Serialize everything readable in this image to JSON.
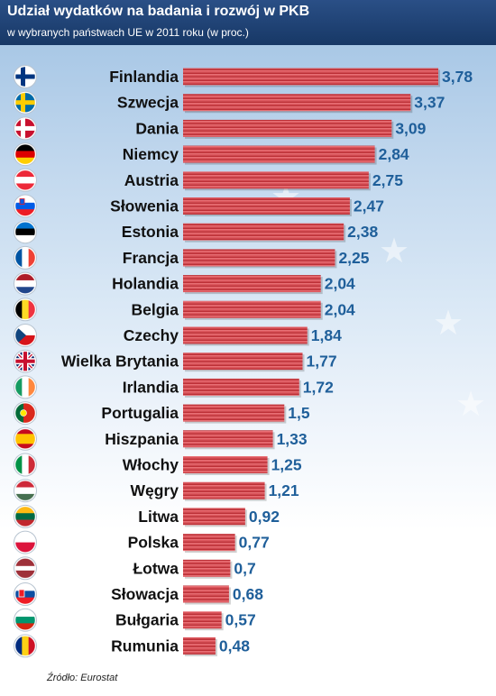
{
  "header": {
    "title": "Udział wydatków na badania i rozwój w PKB",
    "subtitle": "w wybranych państwach UE w 2011 roku (w proc.)"
  },
  "source": "Źródło: Eurostat",
  "colors": {
    "bar": "#d9434a",
    "value_text": "#1f5f9a",
    "header_bg": "#1f4478"
  },
  "chart_data": {
    "type": "bar",
    "orientation": "horizontal",
    "categories": [
      "Finlandia",
      "Szwecja",
      "Dania",
      "Niemcy",
      "Austria",
      "Słowenia",
      "Estonia",
      "Francja",
      "Holandia",
      "Belgia",
      "Czechy",
      "Wielka Brytania",
      "Irlandia",
      "Portugalia",
      "Hiszpania",
      "Włochy",
      "Węgry",
      "Litwa",
      "Polska",
      "Łotwa",
      "Słowacja",
      "Bułgaria",
      "Rumunia"
    ],
    "values": [
      3.78,
      3.37,
      3.09,
      2.84,
      2.75,
      2.47,
      2.38,
      2.25,
      2.04,
      2.04,
      1.84,
      1.77,
      1.72,
      1.5,
      1.33,
      1.25,
      1.21,
      0.92,
      0.77,
      0.7,
      0.68,
      0.57,
      0.48
    ],
    "value_labels": [
      "3,78",
      "3,37",
      "3,09",
      "2,84",
      "2,75",
      "2,47",
      "2,38",
      "2,25",
      "2,04",
      "2,04",
      "1,84",
      "1,77",
      "1,72",
      "1,5",
      "1,33",
      "1,25",
      "1,21",
      "0,92",
      "0,77",
      "0,7",
      "0,68",
      "0,57",
      "0,48"
    ],
    "flag_icons": [
      "finland-flag-icon",
      "sweden-flag-icon",
      "denmark-flag-icon",
      "germany-flag-icon",
      "austria-flag-icon",
      "slovenia-flag-icon",
      "estonia-flag-icon",
      "france-flag-icon",
      "netherlands-flag-icon",
      "belgium-flag-icon",
      "czechia-flag-icon",
      "uk-flag-icon",
      "ireland-flag-icon",
      "portugal-flag-icon",
      "spain-flag-icon",
      "italy-flag-icon",
      "hungary-flag-icon",
      "lithuania-flag-icon",
      "poland-flag-icon",
      "latvia-flag-icon",
      "slovakia-flag-icon",
      "bulgaria-flag-icon",
      "romania-flag-icon"
    ],
    "xlim": [
      0,
      3.78
    ],
    "grid": false,
    "legend": false
  }
}
